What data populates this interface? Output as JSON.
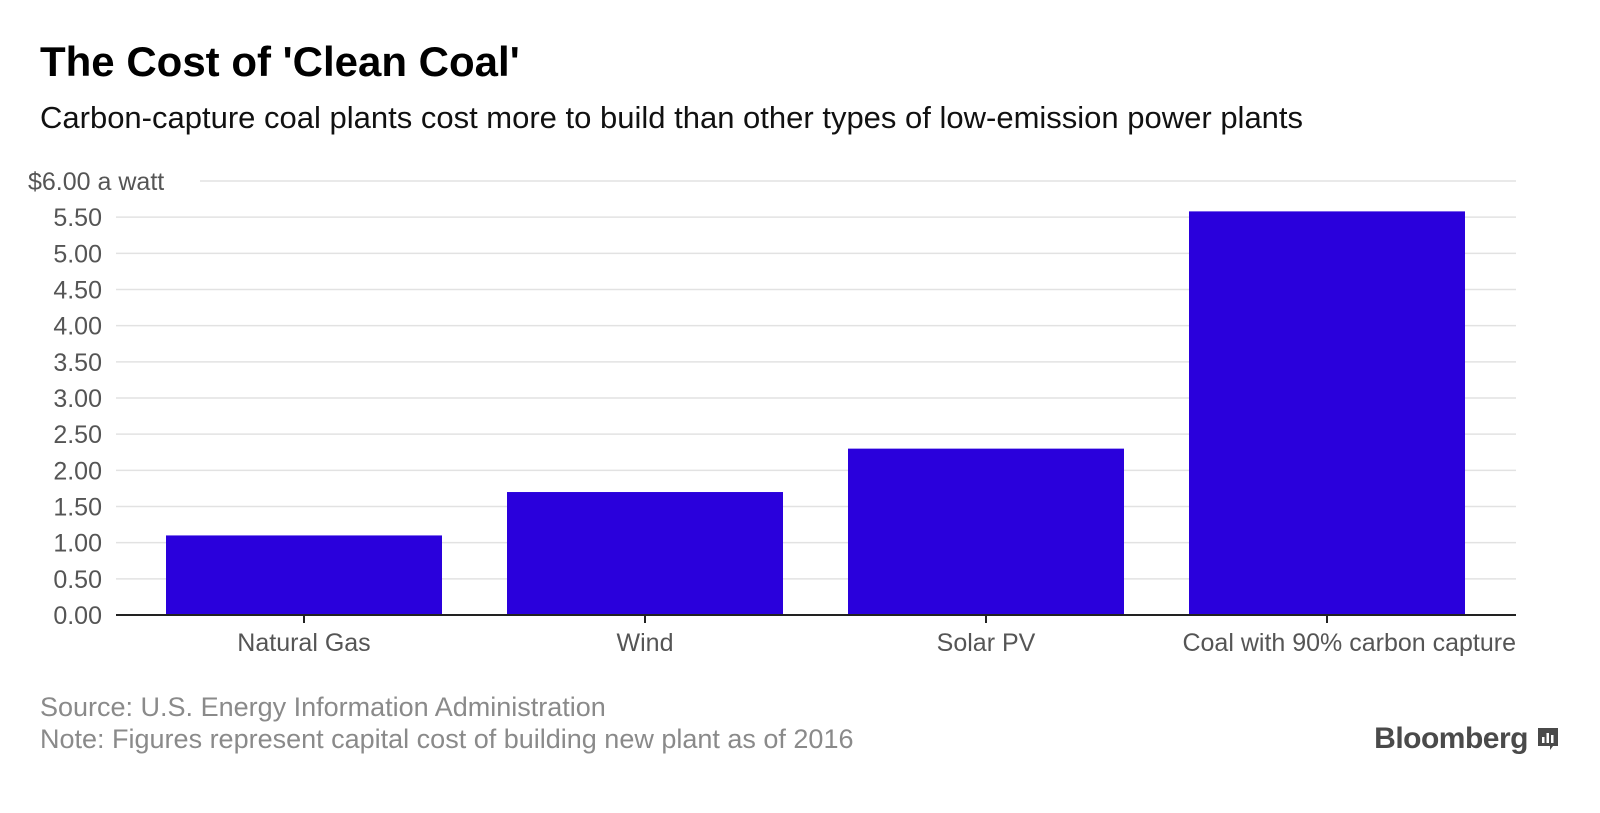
{
  "header": {
    "title": "The Cost of 'Clean Coal'",
    "subtitle": "Carbon-capture coal plants cost more to build than other types of low-emission power plants"
  },
  "chart_data": {
    "type": "bar",
    "categories": [
      "Natural Gas",
      "Wind",
      "Solar PV",
      "Coal with 90% carbon capture"
    ],
    "values": [
      1.1,
      1.7,
      2.3,
      5.58
    ],
    "ylim": [
      0,
      6
    ],
    "yticks": [
      0,
      0.5,
      1,
      1.5,
      2,
      2.5,
      3,
      3.5,
      4,
      4.5,
      5,
      5.5,
      6
    ],
    "ytick_labels": [
      "0.00",
      "0.50",
      "1.00",
      "1.50",
      "2.00",
      "2.50",
      "3.00",
      "3.50",
      "4.00",
      "4.50",
      "5.00",
      "5.50",
      "$6.00 a watt"
    ],
    "grid": true,
    "bar_color": "#2a00dc"
  },
  "footer": {
    "source": "Source: U.S. Energy Information Administration",
    "note": "Note: Figures represent capital cost of building new plant as of 2016",
    "brand": "Bloomberg",
    "brand_icon": "bar-chart-icon"
  }
}
